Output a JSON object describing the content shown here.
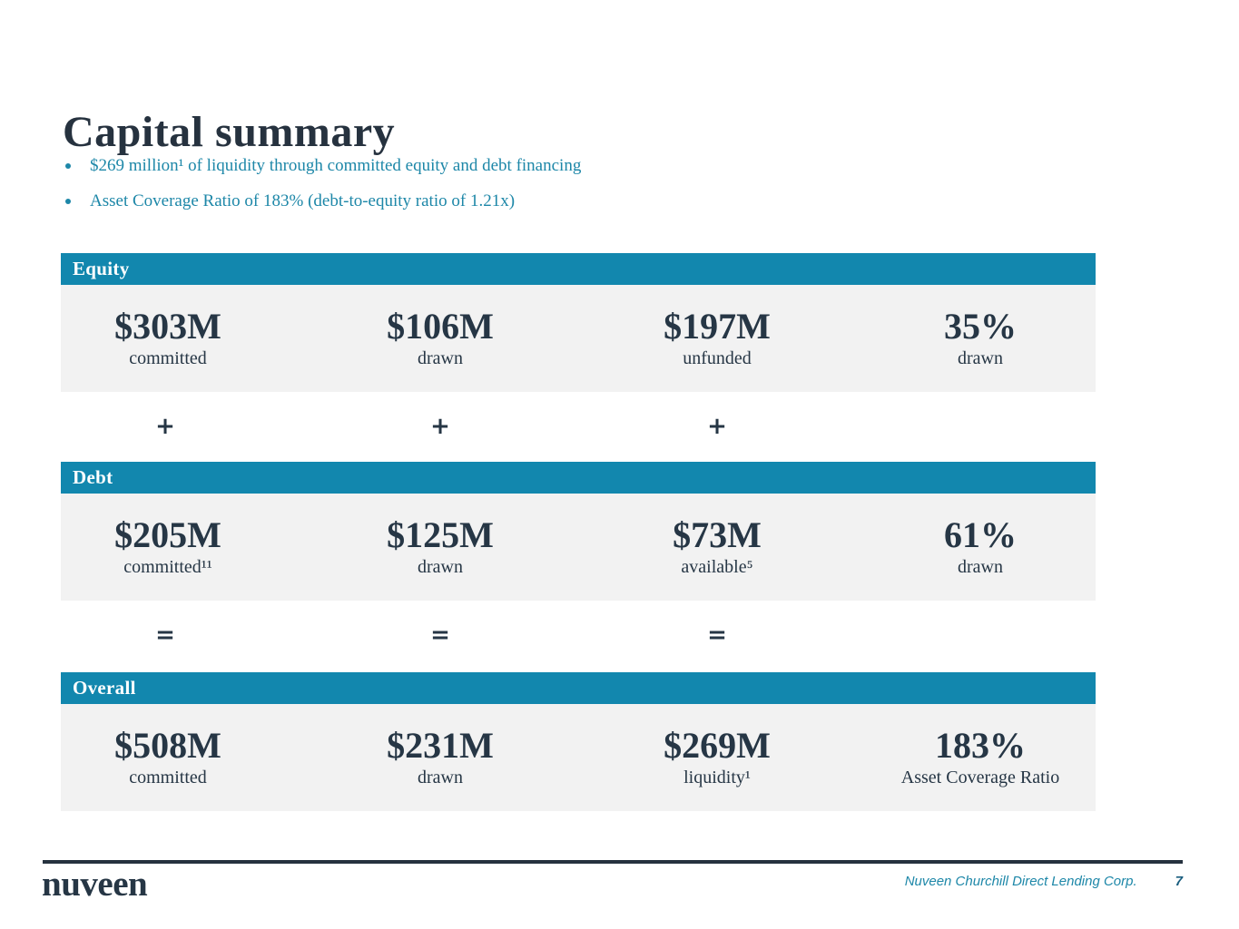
{
  "title": "Capital summary",
  "bullets": [
    "$269 million¹ of liquidity through committed equity and debt financing",
    "Asset Coverage Ratio of 183% (debt-to-equity ratio of 1.21x)"
  ],
  "sections": [
    {
      "label": "Equity",
      "columns": [
        {
          "value": "$303M",
          "label": "committed"
        },
        {
          "value": "$106M",
          "label": "drawn"
        },
        {
          "value": "$197M",
          "label": "unfunded"
        },
        {
          "value": "35%",
          "label": "drawn"
        }
      ]
    },
    {
      "label": "Debt",
      "columns": [
        {
          "value": "$205M",
          "label": "committed¹¹"
        },
        {
          "value": "$125M",
          "label": "drawn"
        },
        {
          "value": "$73M",
          "label": "available⁵"
        },
        {
          "value": "61%",
          "label": "drawn"
        }
      ]
    },
    {
      "label": "Overall",
      "columns": [
        {
          "value": "$508M",
          "label": "committed"
        },
        {
          "value": "$231M",
          "label": "drawn"
        },
        {
          "value": "$269M",
          "label": "liquidity¹"
        },
        {
          "value": "183%",
          "label": "Asset Coverage Ratio"
        }
      ]
    }
  ],
  "operators": {
    "plus": "+",
    "equals": "="
  },
  "footer": {
    "logo": "nuveen",
    "company": "Nuveen Churchill Direct Lending Corp.",
    "page": "7"
  },
  "colors": {
    "accent_blue": "#1287AE",
    "teal_text": "#1D87A8",
    "navy_text": "#26323F",
    "band_gray": "#F2F2F2"
  }
}
